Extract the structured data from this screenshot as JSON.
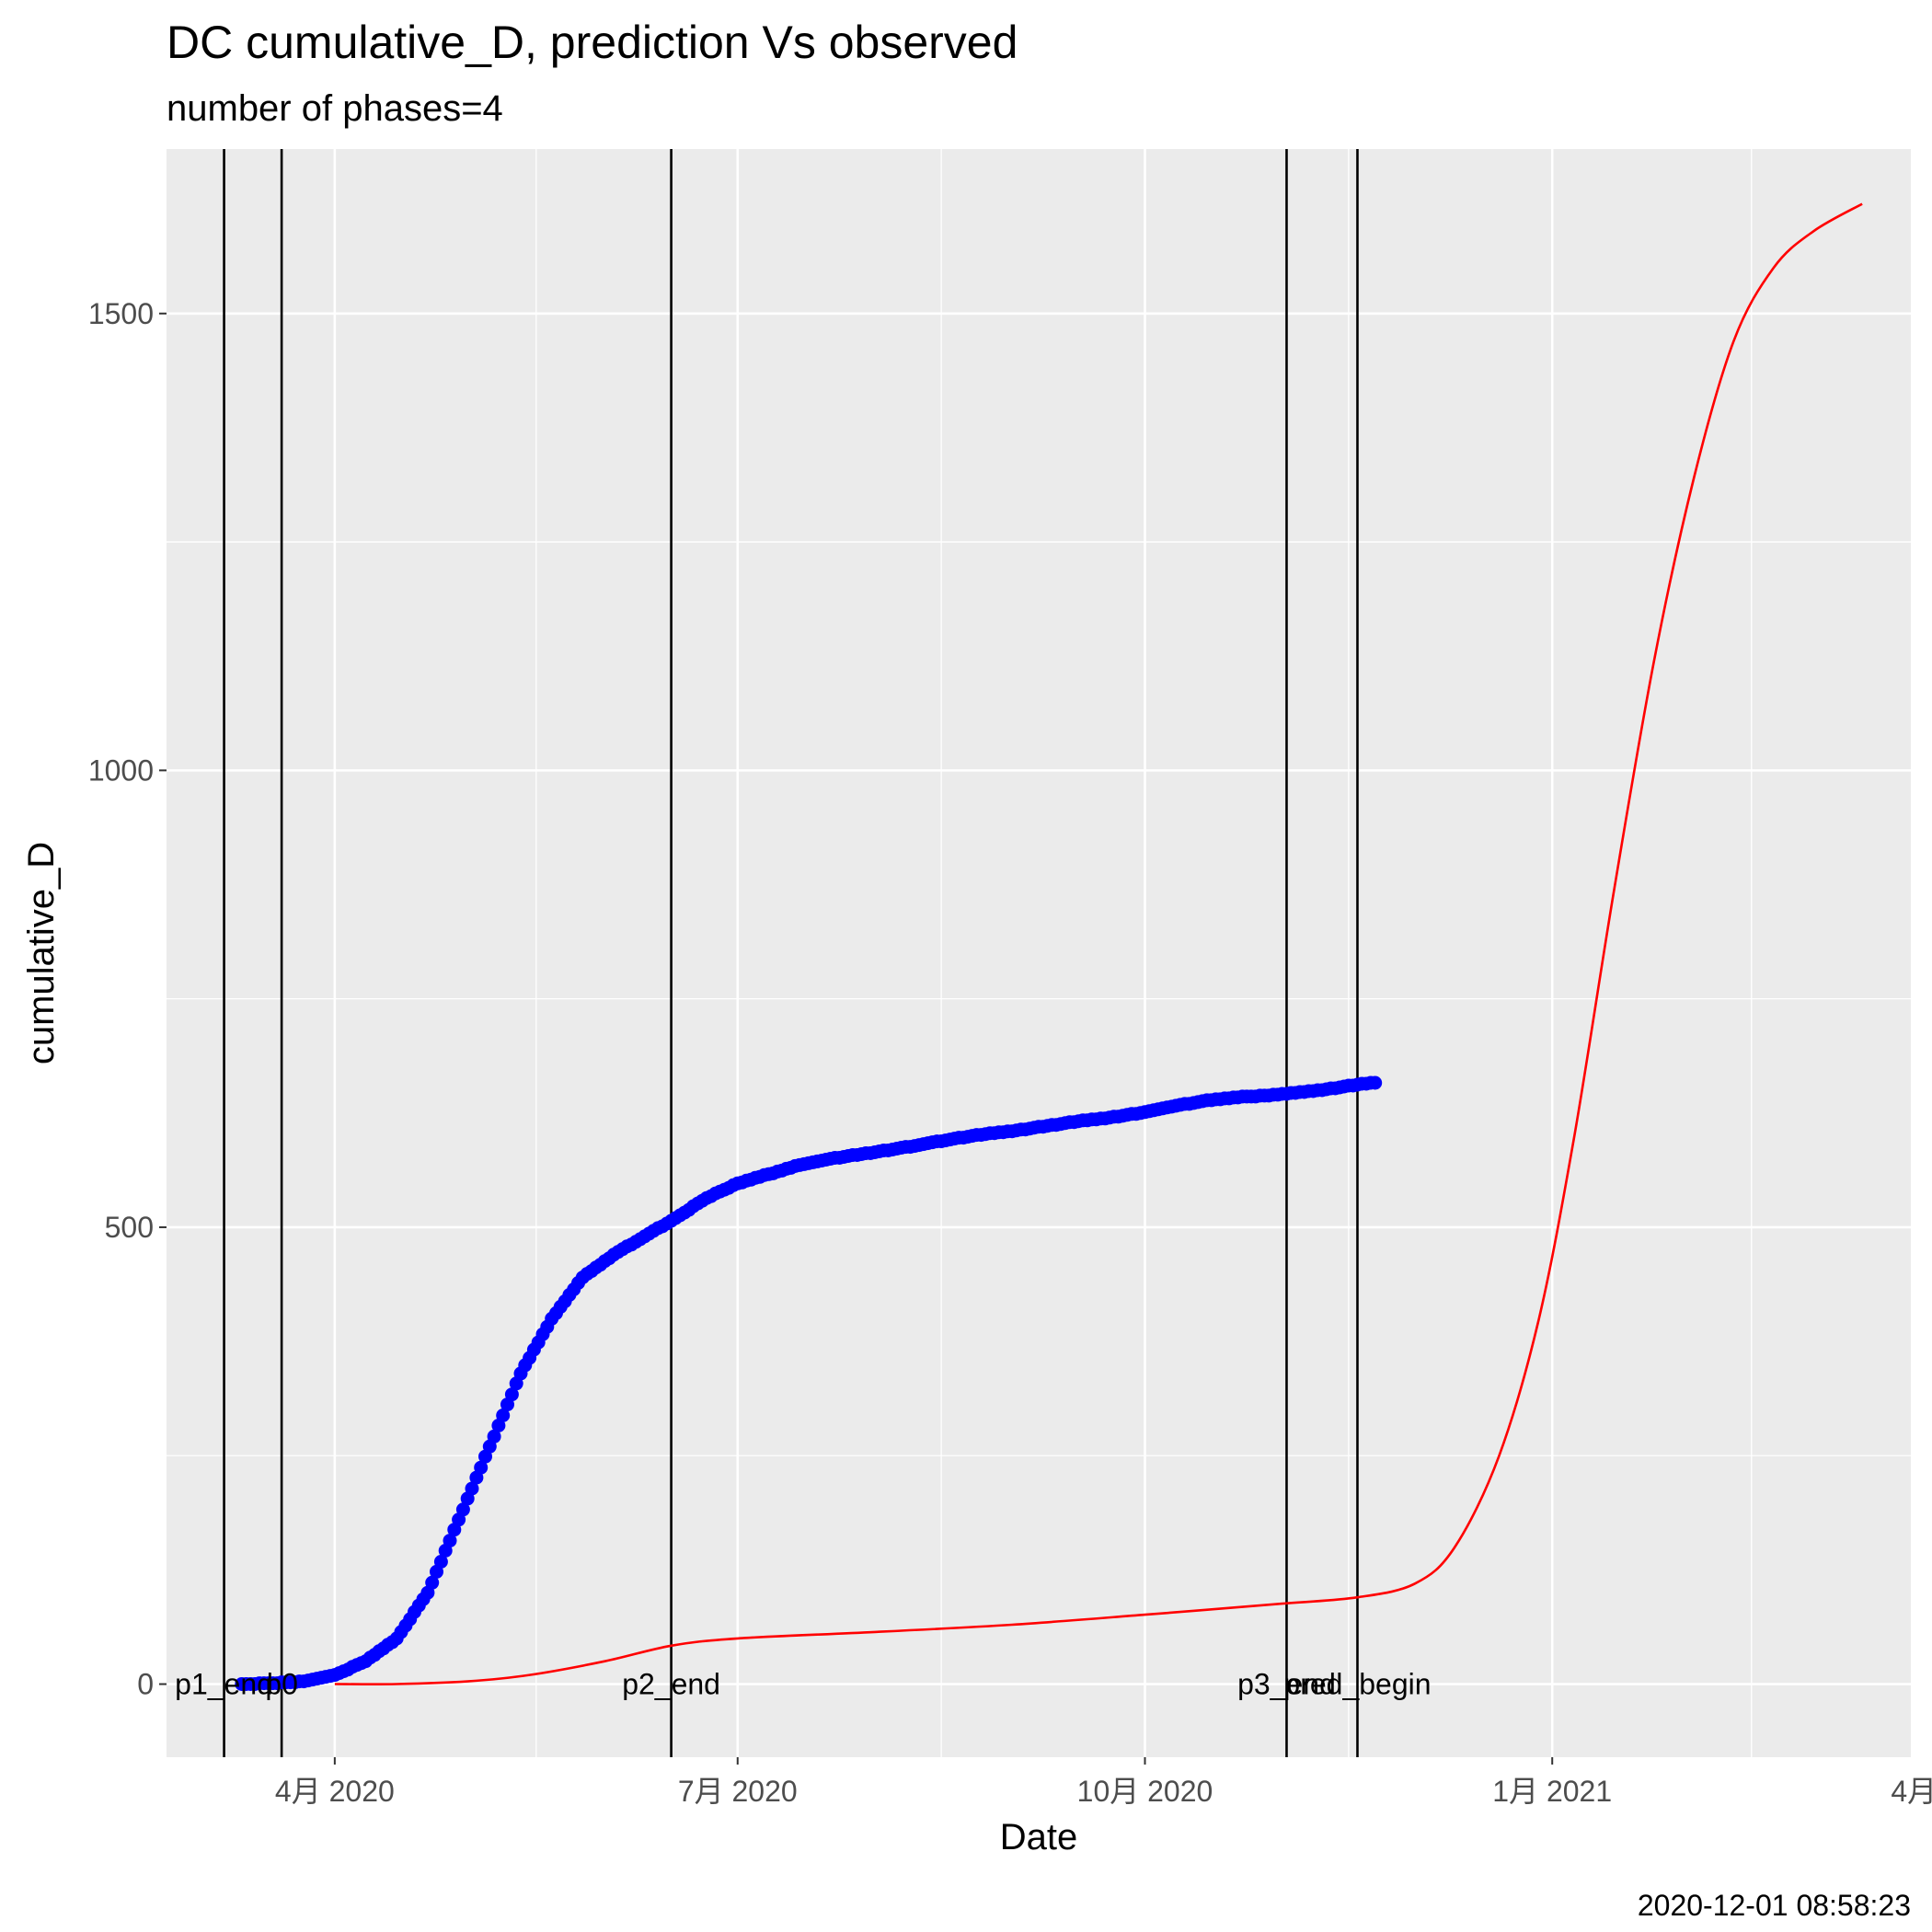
{
  "chart_data": {
    "type": "scatter",
    "title": "DC cumulative_D,  prediction Vs observed",
    "subtitle": "number of phases=4",
    "xlabel": "Date",
    "ylabel": "cumulative_D",
    "caption": "2020-12-01 08:58:23",
    "xlim": [
      "2020-02-23",
      "2021-03-23"
    ],
    "ylim": [
      -80,
      1680
    ],
    "grid": true,
    "x_ticks": [
      {
        "date": "2020-04-01",
        "label": "4月 2020"
      },
      {
        "date": "2020-07-01",
        "label": "7月 2020"
      },
      {
        "date": "2020-10-01",
        "label": "10月 2020"
      },
      {
        "date": "2021-01-01",
        "label": "1月 2021"
      },
      {
        "date": "2021-04-01",
        "label": "4月 2021"
      }
    ],
    "y_ticks": [
      0,
      500,
      1000,
      1500
    ],
    "phase_lines": [
      {
        "date": "2020-03-07",
        "label": "p1_end"
      },
      {
        "date": "2020-03-20",
        "label": "p0"
      },
      {
        "date": "2020-06-16",
        "label": "p2_end"
      },
      {
        "date": "2020-11-02",
        "label": "p3_end"
      },
      {
        "date": "2020-11-18",
        "label": "pred_begin"
      }
    ],
    "observed": {
      "color": "#0000ff",
      "points": [
        [
          "2020-03-11",
          0
        ],
        [
          "2020-03-18",
          1
        ],
        [
          "2020-03-25",
          3
        ],
        [
          "2020-04-01",
          10
        ],
        [
          "2020-04-08",
          25
        ],
        [
          "2020-04-15",
          50
        ],
        [
          "2020-04-22",
          100
        ],
        [
          "2020-04-29",
          180
        ],
        [
          "2020-05-06",
          260
        ],
        [
          "2020-05-13",
          340
        ],
        [
          "2020-05-20",
          400
        ],
        [
          "2020-05-27",
          445
        ],
        [
          "2020-06-03",
          470
        ],
        [
          "2020-06-10",
          490
        ],
        [
          "2020-06-17",
          510
        ],
        [
          "2020-06-24",
          532
        ],
        [
          "2020-07-01",
          548
        ],
        [
          "2020-07-08",
          558
        ],
        [
          "2020-07-15",
          568
        ],
        [
          "2020-07-22",
          575
        ],
        [
          "2020-07-29",
          580
        ],
        [
          "2020-08-05",
          585
        ],
        [
          "2020-08-12",
          591
        ],
        [
          "2020-08-19",
          597
        ],
        [
          "2020-08-26",
          602
        ],
        [
          "2020-09-02",
          606
        ],
        [
          "2020-09-09",
          611
        ],
        [
          "2020-09-16",
          616
        ],
        [
          "2020-09-23",
          620
        ],
        [
          "2020-09-30",
          625
        ],
        [
          "2020-10-07",
          632
        ],
        [
          "2020-10-14",
          638
        ],
        [
          "2020-10-21",
          642
        ],
        [
          "2020-10-28",
          644
        ],
        [
          "2020-11-04",
          647
        ],
        [
          "2020-11-11",
          651
        ],
        [
          "2020-11-18",
          656
        ],
        [
          "2020-11-22",
          658
        ]
      ]
    },
    "prediction": {
      "color": "#ff0000",
      "points": [
        [
          "2020-04-01",
          0
        ],
        [
          "2020-04-15",
          0
        ],
        [
          "2020-05-01",
          3
        ],
        [
          "2020-05-15",
          10
        ],
        [
          "2020-06-01",
          25
        ],
        [
          "2020-06-16",
          42
        ],
        [
          "2020-07-01",
          50
        ],
        [
          "2020-08-01",
          57
        ],
        [
          "2020-09-01",
          65
        ],
        [
          "2020-10-01",
          76
        ],
        [
          "2020-11-01",
          88
        ],
        [
          "2020-11-18",
          95
        ],
        [
          "2020-12-01",
          110
        ],
        [
          "2020-12-10",
          150
        ],
        [
          "2020-12-20",
          250
        ],
        [
          "2020-12-29",
          400
        ],
        [
          "2021-01-06",
          600
        ],
        [
          "2021-01-15",
          870
        ],
        [
          "2021-01-24",
          1120
        ],
        [
          "2021-02-02",
          1320
        ],
        [
          "2021-02-11",
          1470
        ],
        [
          "2021-02-20",
          1550
        ],
        [
          "2021-03-01",
          1590
        ],
        [
          "2021-03-12",
          1620
        ]
      ]
    }
  }
}
